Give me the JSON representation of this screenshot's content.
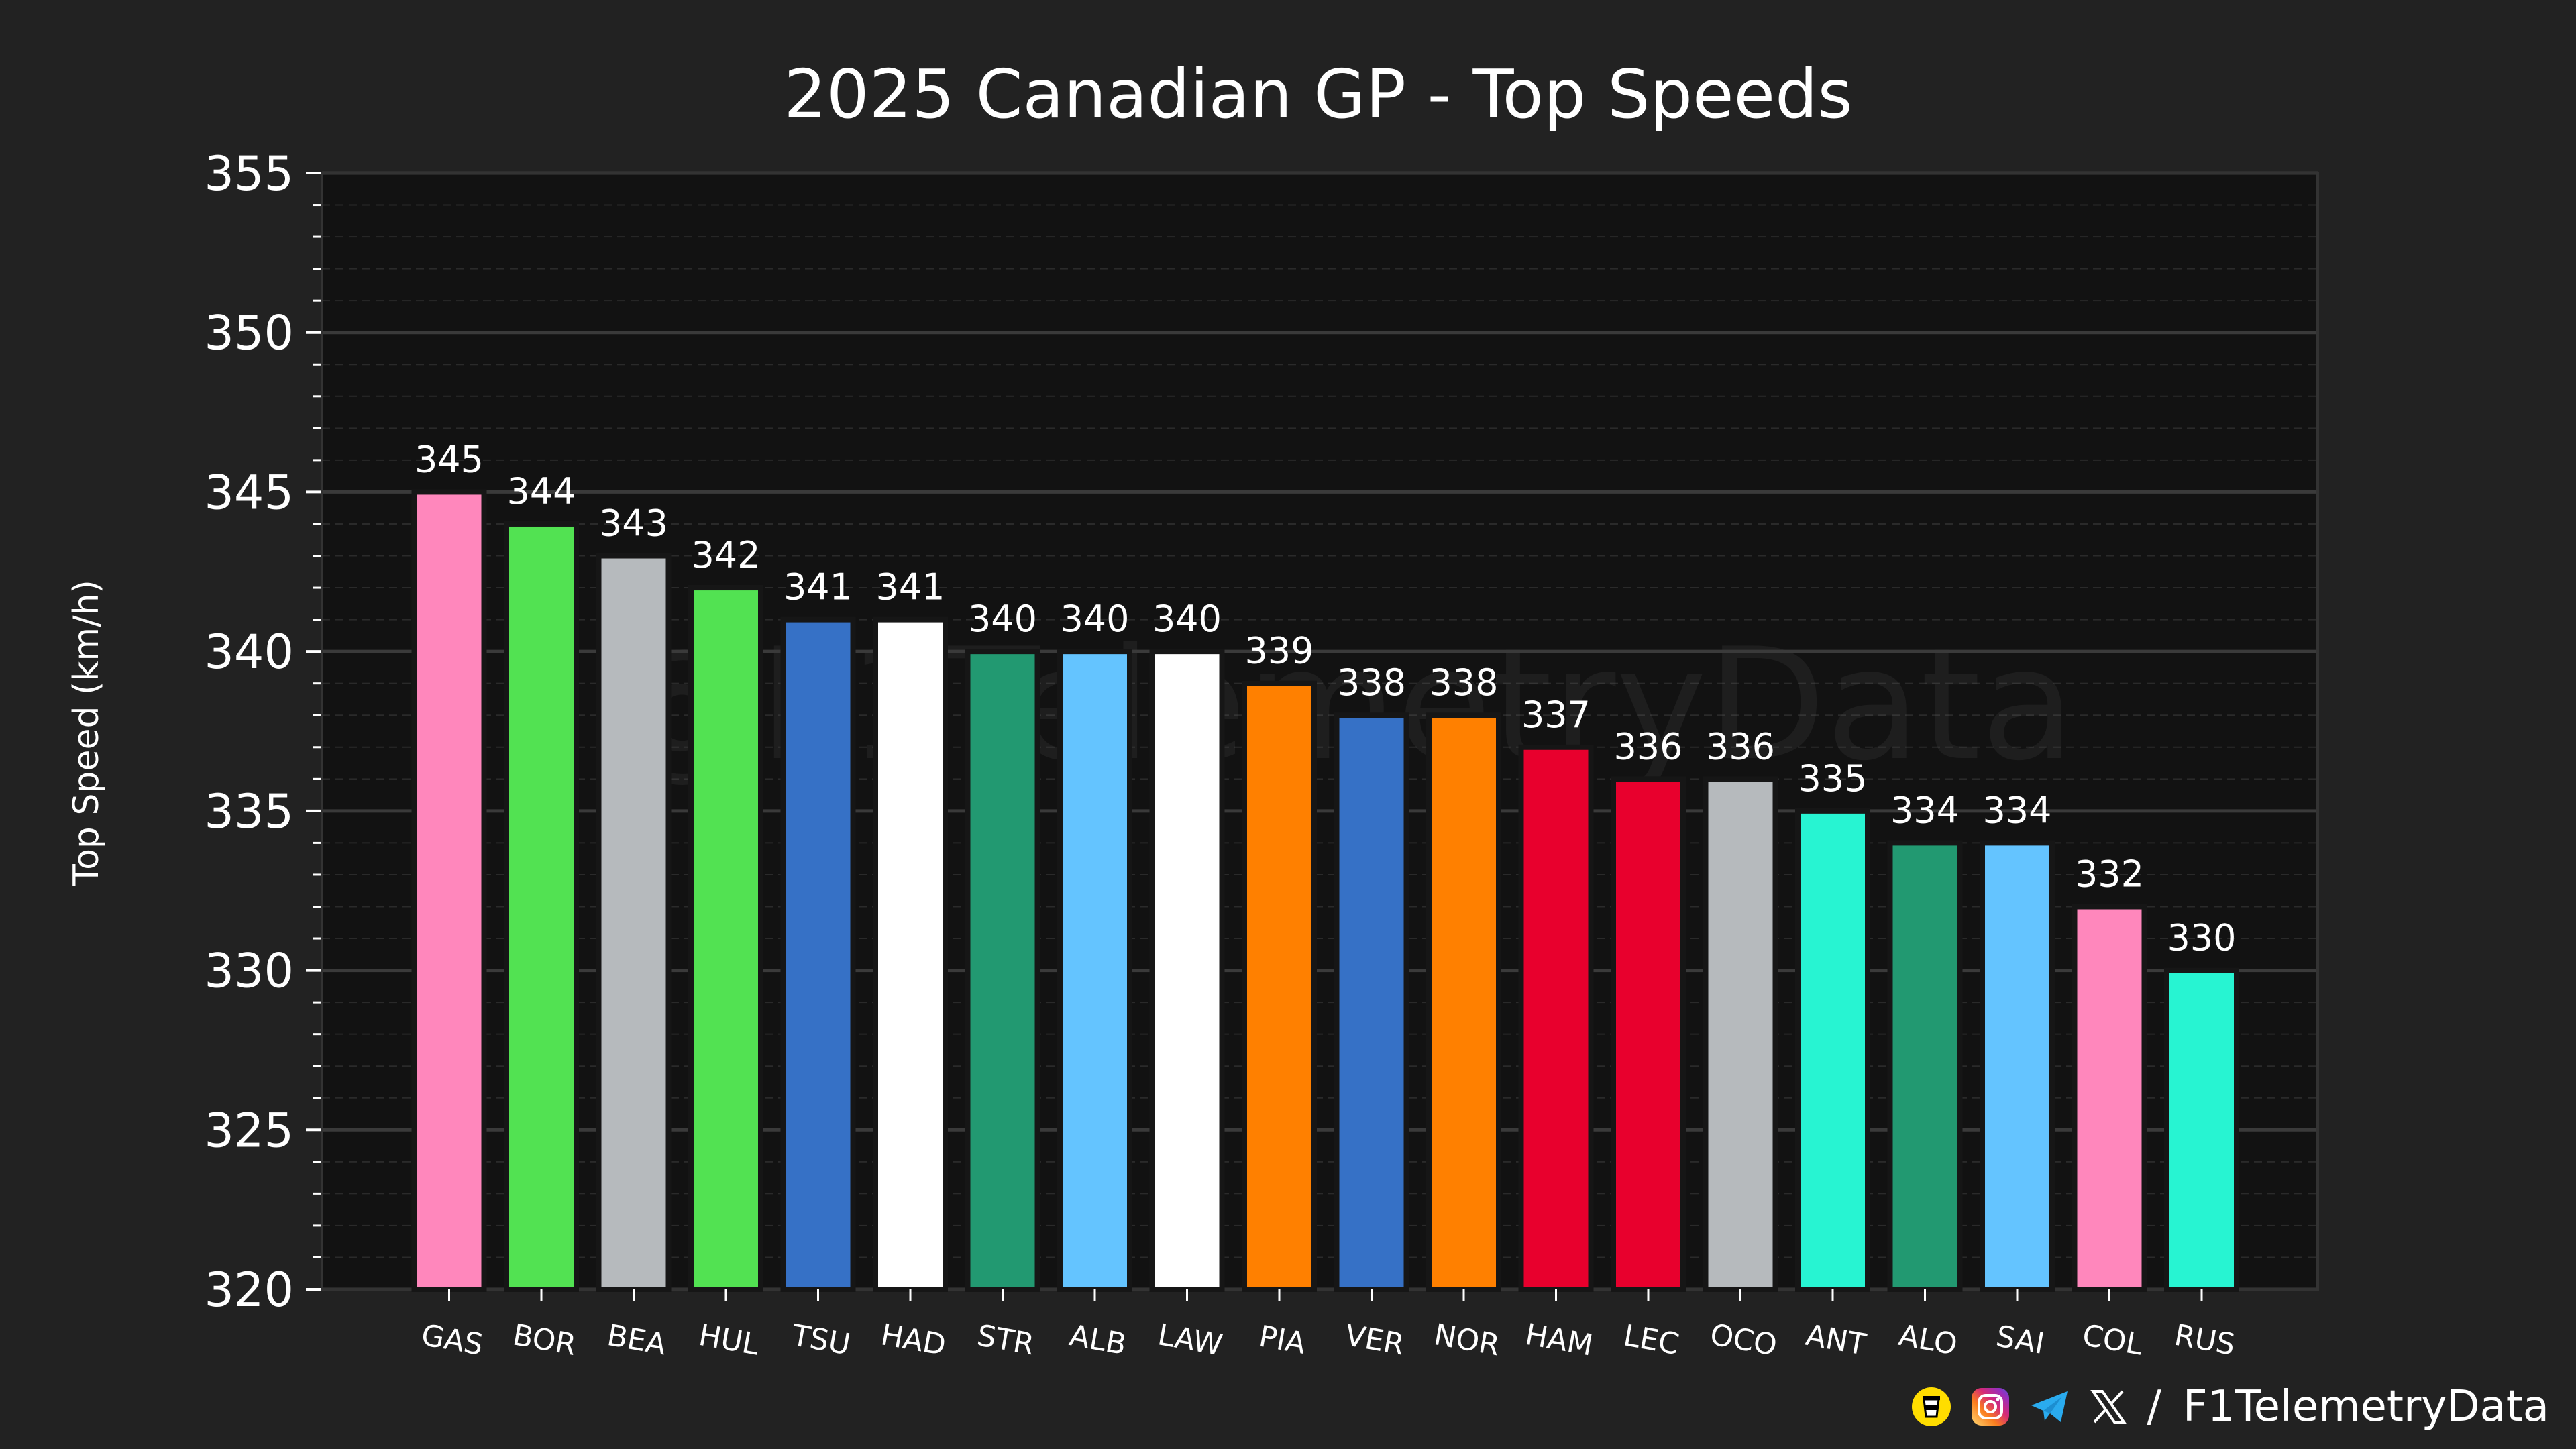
{
  "chart_data": {
    "type": "bar",
    "title": "2025 Canadian GP - Top Speeds",
    "xlabel": "",
    "ylabel": "Top Speed (km/h)",
    "ylim": [
      320,
      355
    ],
    "yticks": [
      320,
      325,
      330,
      335,
      340,
      345,
      350,
      355
    ],
    "ytick_labels": [
      "320",
      "325",
      "330",
      "335",
      "340",
      "345",
      "350",
      "355"
    ],
    "minor_tick_step": 1,
    "grid": true,
    "watermark": "@F1TelemetryData",
    "categories": [
      "GAS",
      "BOR",
      "BEA",
      "HUL",
      "TSU",
      "HAD",
      "STR",
      "ALB",
      "LAW",
      "PIA",
      "VER",
      "NOR",
      "HAM",
      "LEC",
      "OCO",
      "ANT",
      "ALO",
      "SAI",
      "COL",
      "RUS"
    ],
    "values": [
      345,
      344,
      343,
      342,
      341,
      341,
      340,
      340,
      340,
      339,
      338,
      338,
      337,
      336,
      336,
      335,
      334,
      334,
      332,
      330
    ],
    "value_labels": [
      "345",
      "344",
      "343",
      "342",
      "341",
      "341",
      "340",
      "340",
      "340",
      "339",
      "338",
      "338",
      "337",
      "336",
      "336",
      "335",
      "334",
      "334",
      "332",
      "330"
    ],
    "bar_colors": [
      "#FF87BC",
      "#52E252",
      "#B6BABD",
      "#52E252",
      "#3671C6",
      "#FFFFFF",
      "#229971",
      "#64C4FF",
      "#FFFFFF",
      "#FF8000",
      "#3671C6",
      "#FF8000",
      "#E8002D",
      "#E8002D",
      "#B6BABD",
      "#27F4D2",
      "#229971",
      "#64C4FF",
      "#FF87BC",
      "#27F4D2"
    ]
  },
  "colors": {
    "background": "#222222",
    "plot_background": "#121212",
    "grid_major": "#3a3a3a",
    "grid_minor": "#2a2a2a",
    "text": "#ffffff"
  },
  "footer": {
    "separator": "/",
    "handle": "F1TelemetryData",
    "icons": [
      "buymeacoffee-icon",
      "instagram-icon",
      "telegram-icon",
      "x-icon"
    ]
  }
}
